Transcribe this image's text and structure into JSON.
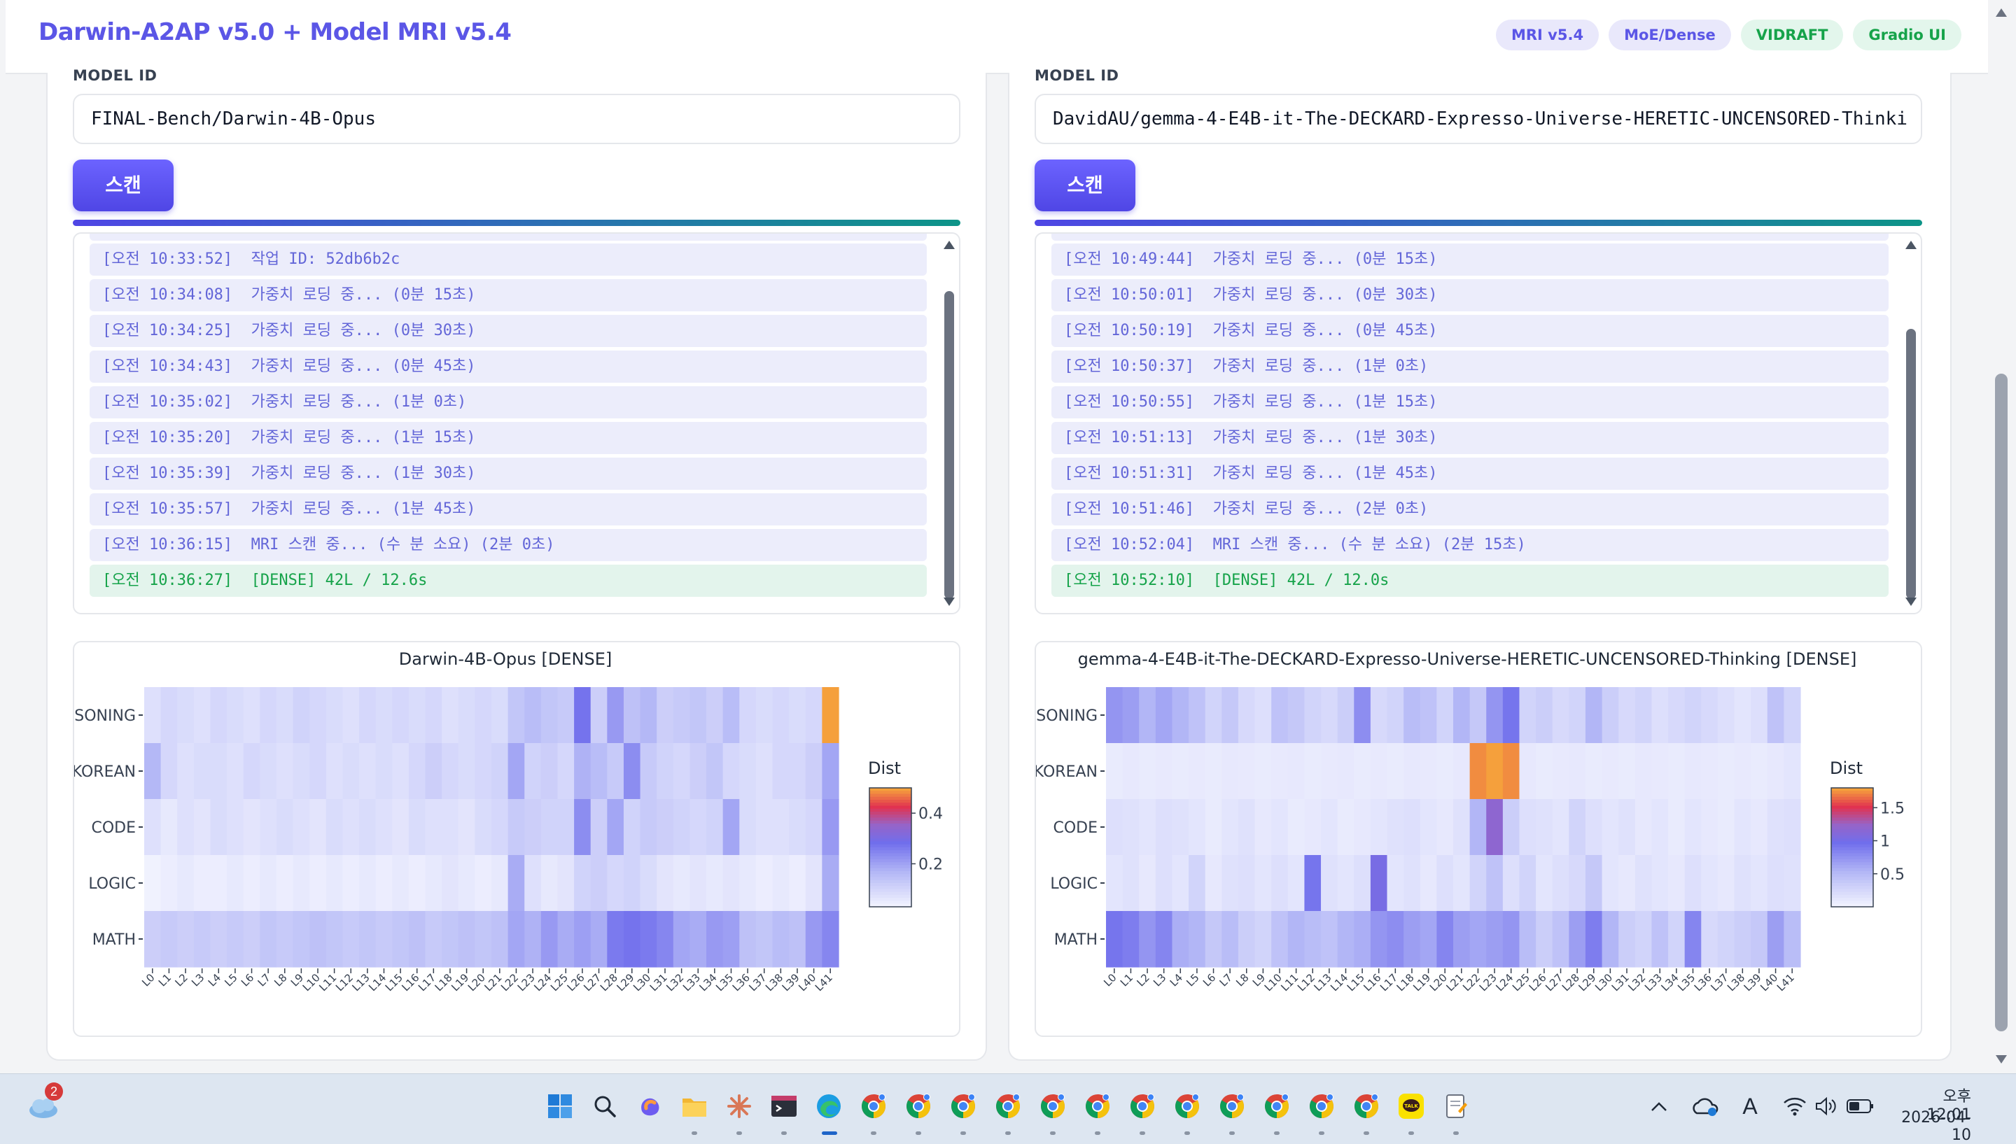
{
  "header": {
    "title": "Darwin-A2AP v5.0 + Model MRI v5.4",
    "badges": [
      "MRI v5.4",
      "MoE/Dense",
      "VIDRAFT",
      "Gradio UI"
    ]
  },
  "panels": [
    {
      "field_label": "MODEL ID",
      "model_id": "FINAL-Bench/Darwin-4B-Opus",
      "scan_label": "스캔",
      "logs": [
        {
          "time": "[오전 10:33:52]",
          "msg": "작업 ID: 52db6b2c"
        },
        {
          "time": "[오전 10:34:08]",
          "msg": "가중치 로딩 중... (0분 15초)"
        },
        {
          "time": "[오전 10:34:25]",
          "msg": "가중치 로딩 중... (0분 30초)"
        },
        {
          "time": "[오전 10:34:43]",
          "msg": "가중치 로딩 중... (0분 45초)"
        },
        {
          "time": "[오전 10:35:02]",
          "msg": "가중치 로딩 중... (1분 0초)"
        },
        {
          "time": "[오전 10:35:20]",
          "msg": "가중치 로딩 중... (1분 15초)"
        },
        {
          "time": "[오전 10:35:39]",
          "msg": "가중치 로딩 중... (1분 30초)"
        },
        {
          "time": "[오전 10:35:57]",
          "msg": "가중치 로딩 중... (1분 45초)"
        },
        {
          "time": "[오전 10:36:15]",
          "msg": "MRI 스캔 중... (수 분 소요) (2분 0초)"
        },
        {
          "time": "[오전 10:36:27]",
          "msg": "[DENSE] 42L / 12.6s",
          "status": "ok"
        }
      ],
      "chart_data": {
        "type": "heatmap",
        "title": "Darwin-4B-Opus [DENSE]",
        "rows": [
          "SONING",
          "KOREAN",
          "CODE",
          "LOGIC",
          "MATH"
        ],
        "columns": [
          "L0",
          "L1",
          "L2",
          "L3",
          "L4",
          "L5",
          "L6",
          "L7",
          "L8",
          "L9",
          "L10",
          "L11",
          "L12",
          "L13",
          "L14",
          "L15",
          "L16",
          "L17",
          "L18",
          "L19",
          "L20",
          "L21",
          "L22",
          "L23",
          "L24",
          "L25",
          "L26",
          "L27",
          "L28",
          "L29",
          "L30",
          "L31",
          "L32",
          "L33",
          "L34",
          "L35",
          "L36",
          "L37",
          "L38",
          "L39",
          "L40",
          "L41"
        ],
        "colorbar_title": "Dist",
        "colorbar_ticks": [
          {
            "label": "0.4",
            "value": 0.4
          },
          {
            "label": "0.2",
            "value": 0.2
          }
        ],
        "zrange": [
          0.03,
          0.5
        ],
        "values": [
          [
            0.08,
            0.1,
            0.09,
            0.08,
            0.1,
            0.09,
            0.08,
            0.1,
            0.09,
            0.11,
            0.1,
            0.09,
            0.08,
            0.1,
            0.09,
            0.1,
            0.09,
            0.1,
            0.08,
            0.09,
            0.1,
            0.09,
            0.14,
            0.16,
            0.14,
            0.13,
            0.28,
            0.12,
            0.22,
            0.15,
            0.17,
            0.12,
            0.13,
            0.14,
            0.12,
            0.16,
            0.1,
            0.09,
            0.1,
            0.09,
            0.1,
            0.5
          ],
          [
            0.17,
            0.1,
            0.08,
            0.09,
            0.09,
            0.08,
            0.1,
            0.09,
            0.08,
            0.09,
            0.1,
            0.08,
            0.09,
            0.08,
            0.09,
            0.08,
            0.1,
            0.12,
            0.1,
            0.09,
            0.1,
            0.11,
            0.2,
            0.11,
            0.12,
            0.1,
            0.18,
            0.16,
            0.13,
            0.24,
            0.13,
            0.11,
            0.1,
            0.12,
            0.14,
            0.1,
            0.09,
            0.08,
            0.1,
            0.1,
            0.12,
            0.2
          ],
          [
            0.08,
            0.06,
            0.08,
            0.07,
            0.09,
            0.08,
            0.07,
            0.08,
            0.09,
            0.08,
            0.07,
            0.09,
            0.08,
            0.09,
            0.08,
            0.07,
            0.09,
            0.08,
            0.08,
            0.07,
            0.09,
            0.1,
            0.13,
            0.12,
            0.11,
            0.11,
            0.24,
            0.12,
            0.2,
            0.11,
            0.13,
            0.12,
            0.11,
            0.1,
            0.11,
            0.2,
            0.09,
            0.08,
            0.08,
            0.09,
            0.1,
            0.22
          ],
          [
            0.04,
            0.05,
            0.06,
            0.05,
            0.05,
            0.06,
            0.05,
            0.06,
            0.05,
            0.06,
            0.05,
            0.06,
            0.05,
            0.06,
            0.05,
            0.06,
            0.05,
            0.06,
            0.07,
            0.06,
            0.05,
            0.06,
            0.19,
            0.08,
            0.06,
            0.07,
            0.11,
            0.12,
            0.1,
            0.11,
            0.09,
            0.07,
            0.06,
            0.07,
            0.06,
            0.07,
            0.06,
            0.05,
            0.06,
            0.05,
            0.07,
            0.19
          ],
          [
            0.12,
            0.13,
            0.12,
            0.13,
            0.12,
            0.13,
            0.12,
            0.14,
            0.13,
            0.14,
            0.15,
            0.14,
            0.13,
            0.14,
            0.13,
            0.14,
            0.15,
            0.13,
            0.14,
            0.15,
            0.14,
            0.15,
            0.2,
            0.18,
            0.22,
            0.19,
            0.21,
            0.19,
            0.27,
            0.28,
            0.27,
            0.25,
            0.2,
            0.19,
            0.22,
            0.21,
            0.15,
            0.14,
            0.16,
            0.15,
            0.22,
            0.25
          ]
        ]
      }
    },
    {
      "field_label": "MODEL ID",
      "model_id": "DavidAU/gemma-4-E4B-it-The-DECKARD-Expresso-Universe-HERETIC-UNCENSORED-Thinki",
      "scan_label": "스캔",
      "logs": [
        {
          "time": "[오전 10:49:44]",
          "msg": "가중치 로딩 중... (0분 15초)"
        },
        {
          "time": "[오전 10:50:01]",
          "msg": "가중치 로딩 중... (0분 30초)"
        },
        {
          "time": "[오전 10:50:19]",
          "msg": "가중치 로딩 중... (0분 45초)"
        },
        {
          "time": "[오전 10:50:37]",
          "msg": "가중치 로딩 중... (1분 0초)"
        },
        {
          "time": "[오전 10:50:55]",
          "msg": "가중치 로딩 중... (1분 15초)"
        },
        {
          "time": "[오전 10:51:13]",
          "msg": "가중치 로딩 중... (1분 30초)"
        },
        {
          "time": "[오전 10:51:31]",
          "msg": "가중치 로딩 중... (1분 45초)"
        },
        {
          "time": "[오전 10:51:46]",
          "msg": "가중치 로딩 중... (2분 0초)"
        },
        {
          "time": "[오전 10:52:04]",
          "msg": "MRI 스캔 중... (수 분 소요) (2분 15초)"
        },
        {
          "time": "[오전 10:52:10]",
          "msg": "[DENSE] 42L / 12.0s",
          "status": "ok"
        }
      ],
      "chart_data": {
        "type": "heatmap",
        "title": "gemma-4-E4B-it-The-DECKARD-Expresso-Universe-HERETIC-UNCENSORED-Thinking [DENSE]",
        "rows": [
          "SONING",
          "KOREAN",
          "CODE",
          "LOGIC",
          "MATH"
        ],
        "columns": [
          "L0",
          "L1",
          "L2",
          "L3",
          "L4",
          "L5",
          "L6",
          "L7",
          "L8",
          "L9",
          "L10",
          "L11",
          "L12",
          "L13",
          "L14",
          "L15",
          "L16",
          "L17",
          "L18",
          "L19",
          "L20",
          "L21",
          "L22",
          "L23",
          "L24",
          "L25",
          "L26",
          "L27",
          "L28",
          "L29",
          "L30",
          "L31",
          "L32",
          "L33",
          "L34",
          "L35",
          "L36",
          "L37",
          "L38",
          "L39",
          "L40",
          "L41"
        ],
        "colorbar_title": "Dist",
        "colorbar_ticks": [
          {
            "label": "1.5",
            "value": 1.5
          },
          {
            "label": "1",
            "value": 1.0
          },
          {
            "label": "0.5",
            "value": 0.5
          }
        ],
        "zrange": [
          0.0,
          1.8
        ],
        "values": [
          [
            0.75,
            0.7,
            0.55,
            0.65,
            0.55,
            0.45,
            0.3,
            0.4,
            0.25,
            0.2,
            0.45,
            0.4,
            0.3,
            0.25,
            0.35,
            0.8,
            0.25,
            0.3,
            0.5,
            0.45,
            0.3,
            0.55,
            0.4,
            0.75,
            0.95,
            0.3,
            0.35,
            0.25,
            0.3,
            0.55,
            0.35,
            0.25,
            0.3,
            0.2,
            0.25,
            0.3,
            0.25,
            0.2,
            0.15,
            0.2,
            0.45,
            0.3
          ],
          [
            0.1,
            0.12,
            0.1,
            0.11,
            0.1,
            0.11,
            0.1,
            0.12,
            0.11,
            0.1,
            0.11,
            0.12,
            0.1,
            0.11,
            0.12,
            0.1,
            0.11,
            0.1,
            0.12,
            0.11,
            0.1,
            0.12,
            1.75,
            1.8,
            1.75,
            0.12,
            0.1,
            0.11,
            0.12,
            0.1,
            0.11,
            0.1,
            0.12,
            0.11,
            0.1,
            0.12,
            0.11,
            0.1,
            0.11,
            0.1,
            0.12,
            0.15
          ],
          [
            0.2,
            0.18,
            0.15,
            0.2,
            0.18,
            0.15,
            0.1,
            0.15,
            0.18,
            0.12,
            0.15,
            0.1,
            0.12,
            0.15,
            0.1,
            0.12,
            0.15,
            0.18,
            0.2,
            0.15,
            0.12,
            0.18,
            0.55,
            1.2,
            0.35,
            0.2,
            0.18,
            0.15,
            0.3,
            0.2,
            0.15,
            0.18,
            0.12,
            0.15,
            0.1,
            0.15,
            0.12,
            0.1,
            0.15,
            0.12,
            0.18,
            0.2
          ],
          [
            0.15,
            0.18,
            0.12,
            0.2,
            0.15,
            0.3,
            0.12,
            0.18,
            0.2,
            0.15,
            0.2,
            0.15,
            0.95,
            0.18,
            0.15,
            0.2,
            1.05,
            0.15,
            0.18,
            0.12,
            0.2,
            0.15,
            0.3,
            0.45,
            0.2,
            0.3,
            0.15,
            0.2,
            0.25,
            0.4,
            0.15,
            0.12,
            0.18,
            0.15,
            0.12,
            0.2,
            0.15,
            0.12,
            0.18,
            0.15,
            0.2,
            0.18
          ],
          [
            0.95,
            0.9,
            0.75,
            0.85,
            0.6,
            0.55,
            0.4,
            0.5,
            0.35,
            0.3,
            0.45,
            0.55,
            0.5,
            0.45,
            0.55,
            0.6,
            0.75,
            0.8,
            0.7,
            0.65,
            0.85,
            0.7,
            0.65,
            0.7,
            0.75,
            0.5,
            0.35,
            0.45,
            0.7,
            0.9,
            0.55,
            0.35,
            0.3,
            0.45,
            0.3,
            0.85,
            0.25,
            0.3,
            0.35,
            0.4,
            0.7,
            0.5
          ]
        ]
      }
    }
  ],
  "taskbar": {
    "clock_time": "오후 12:01",
    "clock_date": "2026-04-10",
    "weather_badge": "2",
    "ime_label": "A"
  }
}
